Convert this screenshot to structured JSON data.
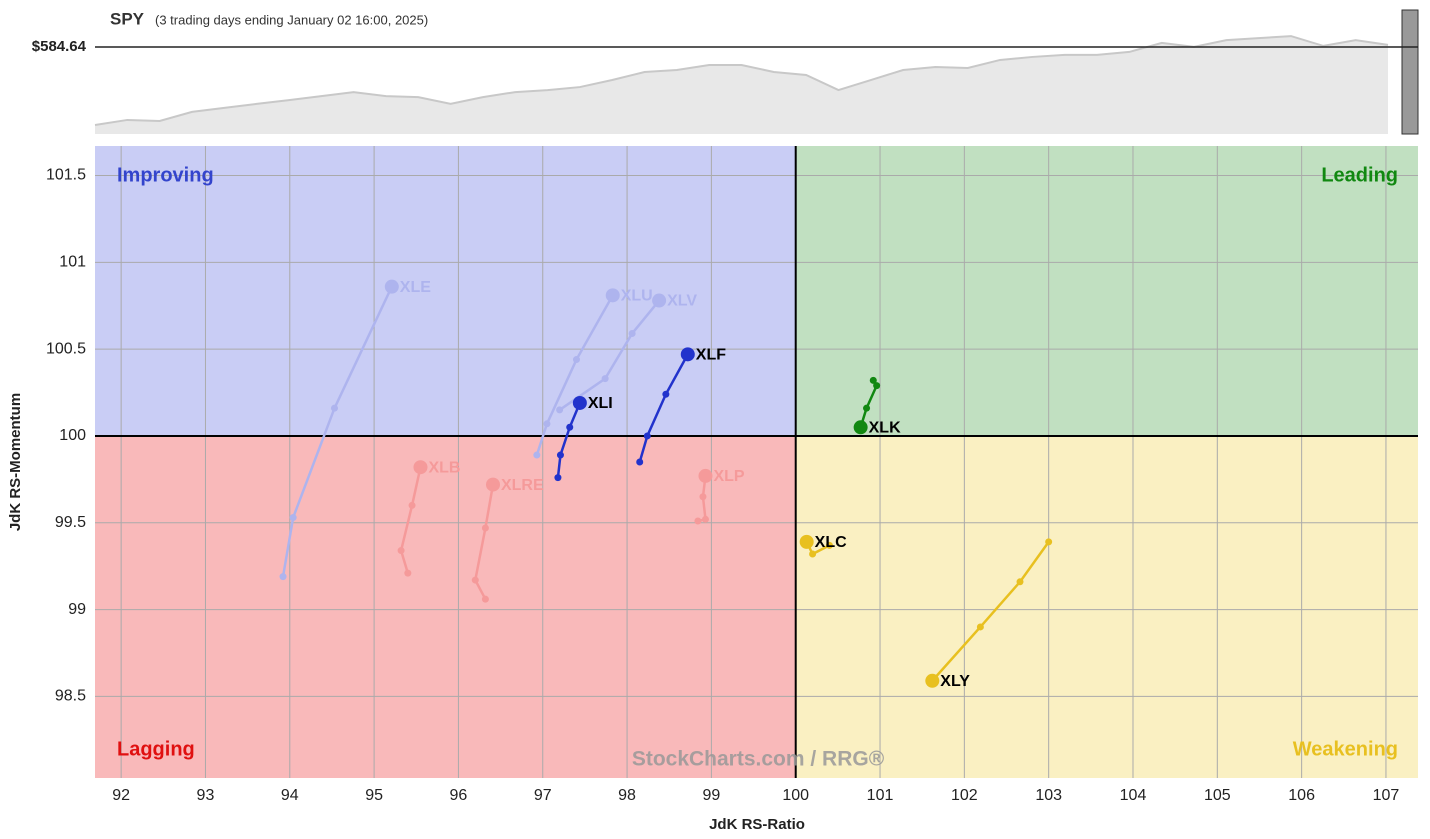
{
  "chart_data": [
    {
      "type": "area",
      "title": "SPY",
      "subtitle": "(3 trading days ending January 02 16:00, 2025)",
      "color": "#c8c8c8",
      "fill": "#e8e8e8",
      "values": [
        553.6,
        555.6,
        555.2,
        558.8,
        560.4,
        562.0,
        563.5,
        565.1,
        566.7,
        565.1,
        564.7,
        562.0,
        564.7,
        566.7,
        567.5,
        568.7,
        571.5,
        574.7,
        575.5,
        577.5,
        577.5,
        574.7,
        573.5,
        567.5,
        571.5,
        575.5,
        576.7,
        576.3,
        579.5,
        580.7,
        581.5,
        581.5,
        582.7,
        586.3,
        584.7,
        587.4,
        588.2,
        589.0,
        585.1,
        587.4,
        585.5
      ],
      "ylim": [
        550,
        599.4
      ],
      "yticks": [
        {
          "value": 584.64,
          "label": "$584.64"
        }
      ]
    },
    {
      "type": "rrg",
      "x_label": "JdK RS-Ratio",
      "y_label": "JdK RS-Momentum",
      "watermark": "StockCharts.com / RRG®",
      "xlim": [
        91.69,
        107.38
      ],
      "ylim": [
        98.03,
        101.67
      ],
      "xticks": [
        92,
        93,
        94,
        95,
        96,
        97,
        98,
        99,
        100,
        101,
        102,
        103,
        104,
        105,
        106,
        107
      ],
      "yticks": [
        98.5,
        99,
        99.5,
        100,
        100.5,
        101,
        101.5
      ],
      "grid": true,
      "center": [
        100,
        100
      ],
      "quadrants": [
        {
          "label": "Improving",
          "color": "#3344cc",
          "fill": "#c9cdf5"
        },
        {
          "label": "Leading",
          "color": "#118811",
          "fill": "#c1e0c1"
        },
        {
          "label": "Lagging",
          "color": "#e01010",
          "fill": "#f9b9ba"
        },
        {
          "label": "Weakening",
          "color": "#e8c020",
          "fill": "#faf0c2"
        }
      ],
      "series": [
        {
          "name": "XLE",
          "color": "#aeb4ee",
          "x": [
            93.92,
            94.04,
            94.53,
            95.21
          ],
          "values": [
            99.19,
            99.53,
            100.16,
            100.86
          ]
        },
        {
          "name": "XLU",
          "color": "#aeb4ee",
          "x": [
            96.93,
            97.05,
            97.4,
            97.83
          ],
          "values": [
            99.89,
            100.07,
            100.44,
            100.81
          ]
        },
        {
          "name": "XLV",
          "color": "#aeb4ee",
          "x": [
            97.2,
            97.74,
            98.06,
            98.38
          ],
          "values": [
            100.15,
            100.33,
            100.59,
            100.78
          ]
        },
        {
          "name": "XLF",
          "color": "#2233cc",
          "x": [
            98.15,
            98.24,
            98.46,
            98.72
          ],
          "values": [
            99.85,
            100.0,
            100.24,
            100.47
          ]
        },
        {
          "name": "XLI",
          "color": "#2233cc",
          "x": [
            97.18,
            97.21,
            97.32,
            97.44
          ],
          "values": [
            99.76,
            99.89,
            100.05,
            100.19
          ]
        },
        {
          "name": "XLK",
          "color": "#118811",
          "x": [
            100.92,
            100.96,
            100.84,
            100.77
          ],
          "values": [
            100.32,
            100.29,
            100.16,
            100.05
          ]
        },
        {
          "name": "XLB",
          "color": "#f59a9a",
          "x": [
            95.4,
            95.32,
            95.45,
            95.55
          ],
          "values": [
            99.21,
            99.34,
            99.6,
            99.82
          ]
        },
        {
          "name": "XLRE",
          "color": "#f59a9a",
          "x": [
            96.32,
            96.2,
            96.32,
            96.41
          ],
          "values": [
            99.06,
            99.17,
            99.47,
            99.72
          ]
        },
        {
          "name": "XLP",
          "color": "#f59a9a",
          "x": [
            98.84,
            98.93,
            98.9,
            98.93
          ],
          "values": [
            99.51,
            99.52,
            99.65,
            99.77
          ]
        },
        {
          "name": "XLC",
          "color": "#e8c020",
          "x": [
            100.4,
            100.2,
            100.13
          ],
          "values": [
            99.37,
            99.32,
            99.39
          ]
        },
        {
          "name": "XLY",
          "color": "#e8c020",
          "x": [
            103.0,
            102.66,
            102.19,
            101.62
          ],
          "values": [
            99.39,
            99.16,
            98.9,
            98.59
          ]
        }
      ]
    }
  ]
}
